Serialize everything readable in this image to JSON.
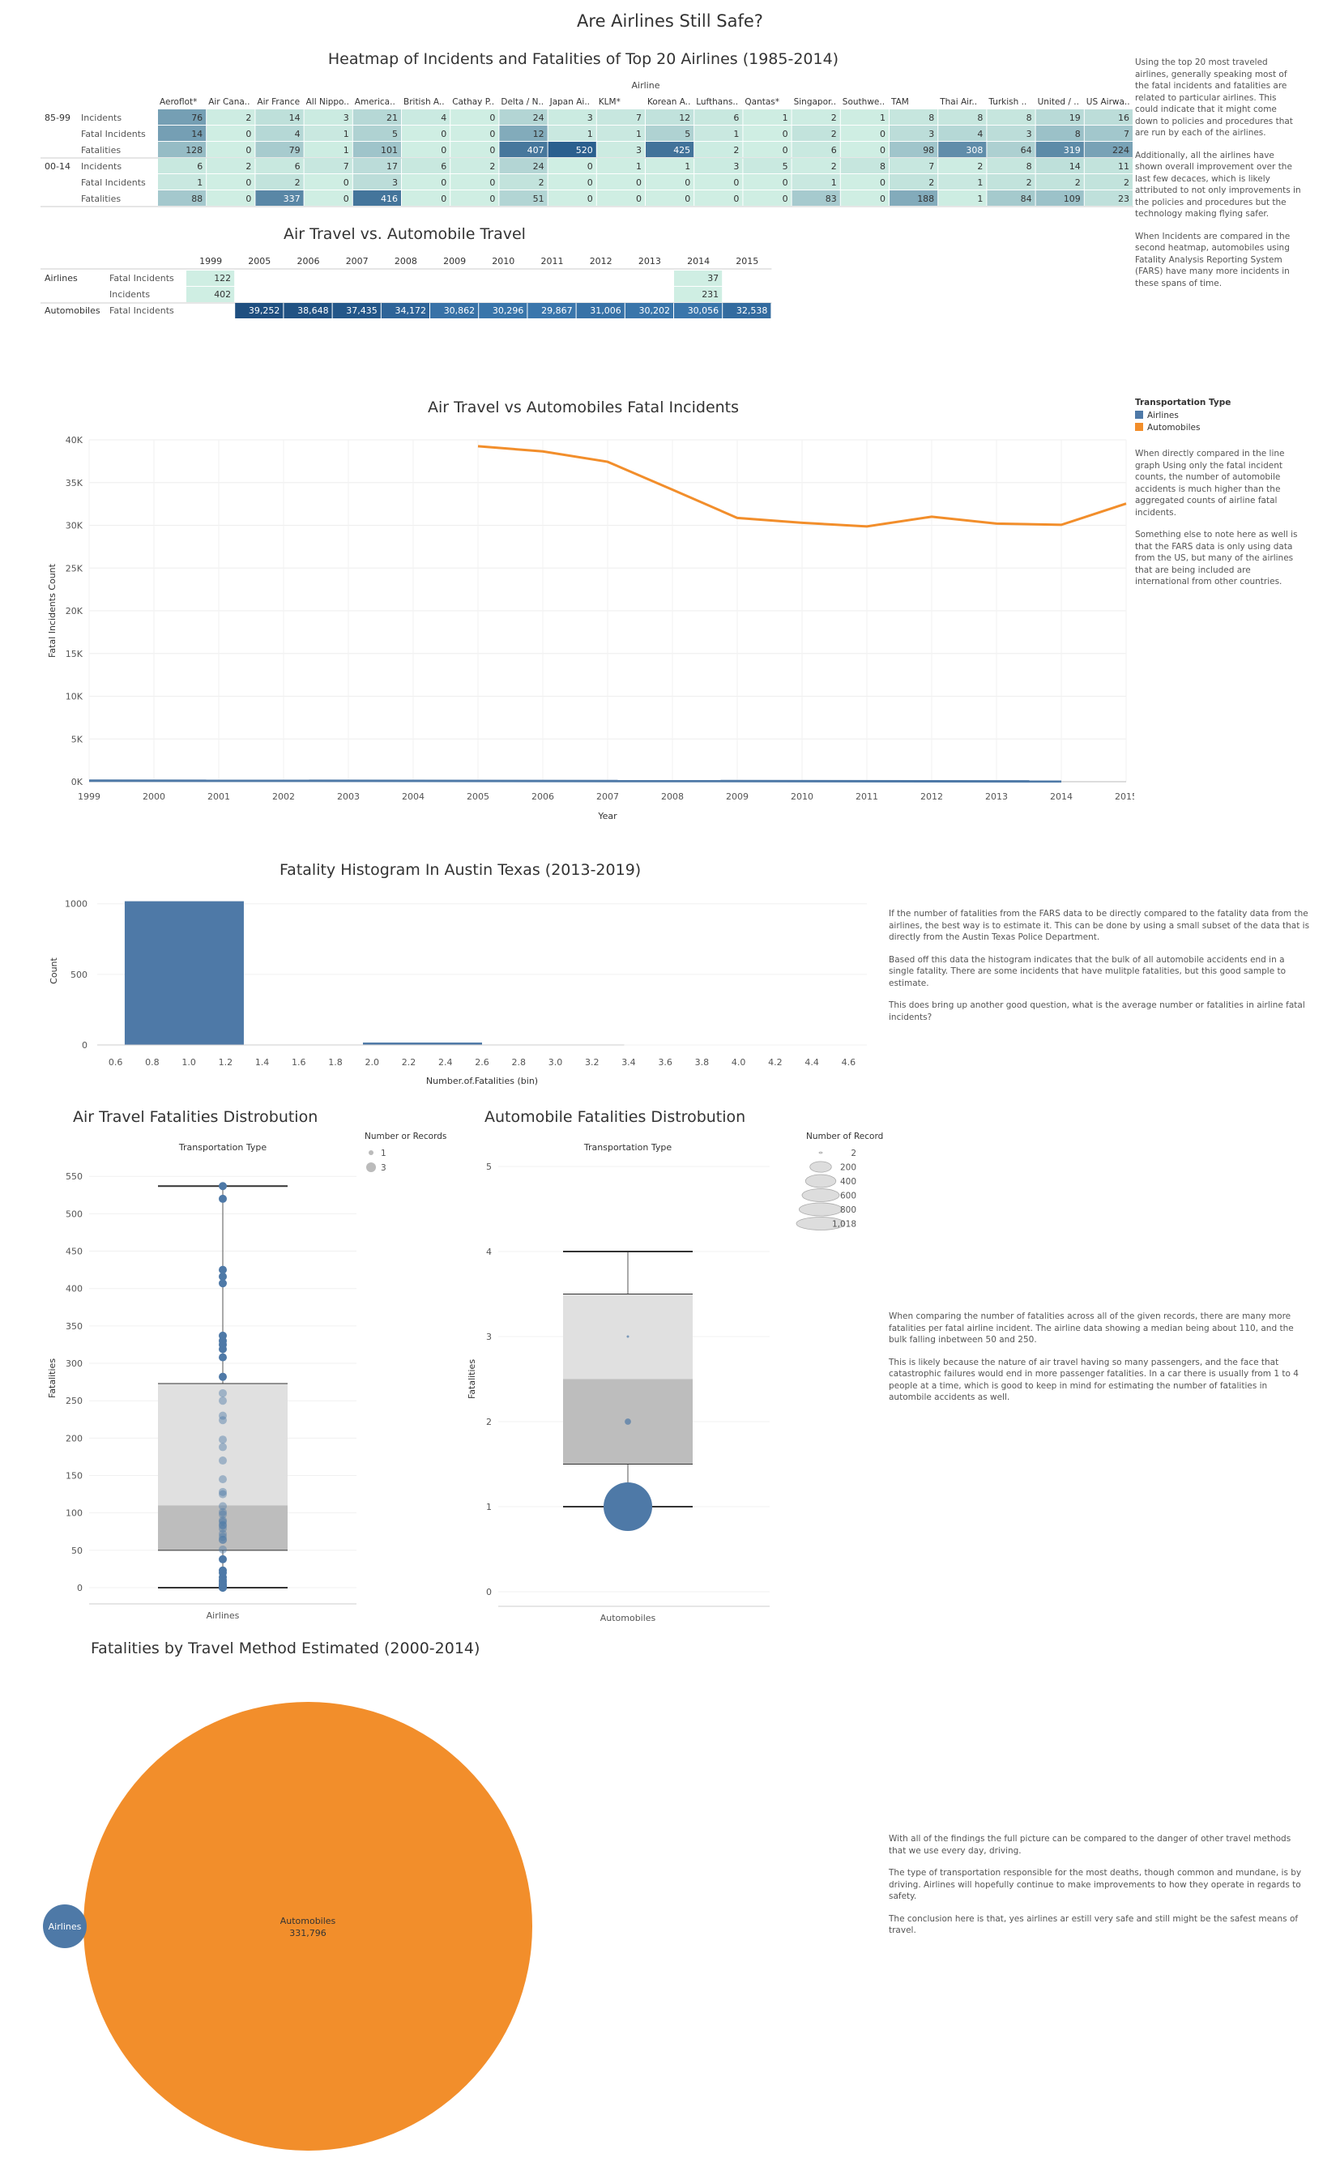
{
  "page": {
    "title": "Are Airlines Still Safe?",
    "colors": {
      "airlines": "#4e79a7",
      "automobiles": "#f28e2b",
      "heat_low": "#cfeee3",
      "heat_high": "#2b5f8e"
    }
  },
  "notes": {
    "heatmap": [
      "Using the top 20 most traveled airlines, generally speaking most of the fatal incidents and fatalities are related to particular airlines. This could indicate that it might come down to policies and procedures that are run by each of the airlines.",
      "Additionally, all the airlines have shown overall improvement over the last few decaces, which is likely attributed to not only improvements in the policies and procedures but the technology making flying safer.",
      "When Incidents are compared in the second heatmap, automobiles using Fatality Analysis Reporting System (FARS) have many more incidents in these spans of time."
    ],
    "line": [
      "When directly compared in the line graph Using only the fatal incident counts, the number of automobile accidents is much higher than the aggregated counts of airline fatal incidents.",
      "Something else to note here as well is that the FARS data is only using data from the US, but many of the airlines that are being included are international from other countries."
    ],
    "histogram": [
      "If the number of fatalities from the FARS data to be directly compared to the fatality data from the airlines, the best way is to estimate it. This can be done by using a small subset of the data that is directly from the Austin Texas Police Department.",
      "Based off this data the histogram indicates that the bulk of all automobile accidents end in a single fatality. There are some incidents that have mulitple fatalities, but this good sample to estimate.",
      "This does bring up another good question, what is the average number or fatalities in airline fatal incidents?"
    ],
    "boxplot": [
      "When comparing the number of fatalities across all of the given records, there are many more fatalities per fatal airline incident. The airline data showing a median being about 110, and the bulk falling inbetween 50 and 250.",
      "This is likely because the nature of air travel having so many passengers, and the face that catastrophic failures would end in more passenger fatalities. In a car there is usually from 1 to 4 people at a time, which is good to keep in mind for estimating the number of fatalities in autombile accidents as well."
    ],
    "bubble": [
      "With all of the findings the full picture can be compared to the danger of other travel methods that we use every day, driving.",
      "The type of transportation responsible for the most deaths, though common and mundane, is by driving. Airlines will hopefully continue to make improvements to how they operate in regards to safety.",
      "The conclusion here is that, yes airlines ar estill very safe and still might be the safest means of travel."
    ]
  },
  "chart_data": [
    {
      "type": "heatmap",
      "title": "Heatmap of Incidents and Fatalities of Top 20 Airlines (1985-2014)",
      "column_header": "Airline",
      "airlines": [
        "Aeroflot*",
        "Air Cana..",
        "Air France",
        "All Nippo..",
        "America..",
        "British A..",
        "Cathay P..",
        "Delta / N..",
        "Japan Ai..",
        "KLM*",
        "Korean A..",
        "Lufthans..",
        "Qantas*",
        "Singapor..",
        "Southwe..",
        "TAM",
        "Thai Air..",
        "Turkish ..",
        "United / ..",
        "US Airwa.."
      ],
      "periods": [
        {
          "label": "85-99",
          "rows": [
            {
              "metric": "Incidents",
              "values": [
                76,
                2,
                14,
                3,
                21,
                4,
                0,
                24,
                3,
                7,
                12,
                6,
                1,
                2,
                1,
                8,
                8,
                8,
                19,
                16
              ]
            },
            {
              "metric": "Fatal Incidents",
              "values": [
                14,
                0,
                4,
                1,
                5,
                0,
                0,
                12,
                1,
                1,
                5,
                1,
                0,
                2,
                0,
                3,
                4,
                3,
                8,
                7
              ]
            },
            {
              "metric": "Fatalities",
              "values": [
                128,
                0,
                79,
                1,
                101,
                0,
                0,
                407,
                520,
                3,
                425,
                2,
                0,
                6,
                0,
                98,
                308,
                64,
                319,
                224
              ]
            }
          ]
        },
        {
          "label": "00-14",
          "rows": [
            {
              "metric": "Incidents",
              "values": [
                6,
                2,
                6,
                7,
                17,
                6,
                2,
                24,
                0,
                1,
                1,
                3,
                5,
                2,
                8,
                7,
                2,
                8,
                14,
                11
              ]
            },
            {
              "metric": "Fatal Incidents",
              "values": [
                1,
                0,
                2,
                0,
                3,
                0,
                0,
                2,
                0,
                0,
                0,
                0,
                0,
                1,
                0,
                2,
                1,
                2,
                2,
                2
              ]
            },
            {
              "metric": "Fatalities",
              "values": [
                88,
                0,
                337,
                0,
                416,
                0,
                0,
                51,
                0,
                0,
                0,
                0,
                0,
                83,
                0,
                188,
                1,
                84,
                109,
                23
              ]
            }
          ]
        }
      ]
    },
    {
      "type": "table",
      "title": "Air Travel vs. Automobile Travel",
      "years": [
        "1999",
        "2005",
        "2006",
        "2007",
        "2008",
        "2009",
        "2010",
        "2011",
        "2012",
        "2013",
        "2014",
        "2015"
      ],
      "rows": [
        {
          "group": "Airlines",
          "metric": "Fatal Incidents",
          "values": [
            "122",
            "",
            "",
            "",
            "",
            "",
            "",
            "",
            "",
            "",
            "37",
            ""
          ]
        },
        {
          "group": "",
          "metric": "Incidents",
          "values": [
            "402",
            "",
            "",
            "",
            "",
            "",
            "",
            "",
            "",
            "",
            "231",
            ""
          ]
        },
        {
          "group": "Automobiles",
          "metric": "Fatal Incidents",
          "values": [
            "",
            "39,252",
            "38,648",
            "37,435",
            "34,172",
            "30,862",
            "30,296",
            "29,867",
            "31,006",
            "30,202",
            "30,056",
            "32,538"
          ]
        }
      ]
    },
    {
      "type": "line",
      "title": "Air Travel vs Automobiles Fatal Incidents",
      "xlabel": "Year",
      "ylabel": "Fatal Incidents Count",
      "x_ticks": [
        1999,
        2000,
        2001,
        2002,
        2003,
        2004,
        2005,
        2006,
        2007,
        2008,
        2009,
        2010,
        2011,
        2012,
        2013,
        2014,
        2015
      ],
      "y_ticks": [
        "0K",
        "5K",
        "10K",
        "15K",
        "20K",
        "25K",
        "30K",
        "35K",
        "40K"
      ],
      "ylim": [
        0,
        40000
      ],
      "legend": {
        "title": "Transportation Type",
        "position": "right",
        "items": [
          "Airlines",
          "Automobiles"
        ]
      },
      "series": [
        {
          "name": "Airlines",
          "x": [
            1999,
            2014
          ],
          "y": [
            122,
            37
          ]
        },
        {
          "name": "Automobiles",
          "x": [
            2005,
            2006,
            2007,
            2008,
            2009,
            2010,
            2011,
            2012,
            2013,
            2014,
            2015
          ],
          "y": [
            39252,
            38648,
            37435,
            34172,
            30862,
            30296,
            29867,
            31006,
            30202,
            30056,
            32538
          ]
        }
      ]
    },
    {
      "type": "bar",
      "title": "Fatality Histogram In Austin Texas (2013-2019)",
      "xlabel": "Number.of.Fatalities (bin)",
      "ylabel": "Count",
      "x_ticks": [
        "0.6",
        "0.8",
        "1.0",
        "1.2",
        "1.4",
        "1.6",
        "1.8",
        "2.0",
        "2.2",
        "2.4",
        "2.6",
        "2.8",
        "3.0",
        "3.2",
        "3.4",
        "3.6",
        "3.8",
        "4.0",
        "4.2",
        "4.4",
        "4.6"
      ],
      "y_ticks": [
        "0",
        "500",
        "1000"
      ],
      "xlim": [
        0.5,
        4.7
      ],
      "ylim": [
        0,
        1050
      ],
      "bins": [
        {
          "start": 0.65,
          "end": 1.3,
          "count": 1018
        },
        {
          "start": 1.95,
          "end": 2.6,
          "count": 17
        }
      ]
    },
    {
      "type": "scatter",
      "title": "Air Travel Fatalities Distrobution",
      "subtitle": "Transportation Type",
      "category": "Airlines",
      "ylabel": "Fatalities",
      "y_ticks": [
        0,
        50,
        100,
        150,
        200,
        250,
        300,
        350,
        400,
        450,
        500,
        550
      ],
      "ylim": [
        0,
        560
      ],
      "box": {
        "min": 0,
        "q1": 50,
        "median": 110,
        "q3": 273,
        "max": 537
      },
      "legend": {
        "title": "Number or Records",
        "items": [
          "1",
          "3"
        ]
      },
      "points": [
        0,
        0,
        0,
        1,
        1,
        2,
        2,
        3,
        5,
        8,
        10,
        14,
        20,
        23,
        38,
        51,
        64,
        64,
        68,
        72,
        79,
        83,
        84,
        88,
        90,
        98,
        101,
        109,
        125,
        128,
        145,
        170,
        188,
        198,
        224,
        230,
        250,
        260,
        282,
        308,
        319,
        325,
        330,
        337,
        407,
        416,
        425,
        520,
        537
      ]
    },
    {
      "type": "scatter",
      "title": "Automobile Fatalities Distrobution",
      "subtitle": "Transportation Type",
      "category": "Automobiles",
      "ylabel": "Fatalities",
      "y_ticks": [
        0,
        1,
        2,
        3,
        4,
        5
      ],
      "ylim": [
        0,
        5
      ],
      "box": {
        "min": 1,
        "q1": 1.5,
        "median": 2.5,
        "q3": 3.5,
        "max": 4
      },
      "legend": {
        "title": "Number of Records",
        "items": [
          "2",
          "200",
          "400",
          "600",
          "800",
          "1,018"
        ]
      },
      "points": [
        {
          "y": 1,
          "records": 1018
        },
        {
          "y": 2,
          "records": 17
        },
        {
          "y": 3,
          "records": 2
        }
      ]
    },
    {
      "type": "scatter",
      "title": "Fatalities by Travel Method Estimated (2000-2014)",
      "bubbles": [
        {
          "name": "Airlines",
          "value_label": "",
          "value": 1400
        },
        {
          "name": "Automobiles",
          "value_label": "331,796",
          "value": 331796
        }
      ]
    }
  ]
}
